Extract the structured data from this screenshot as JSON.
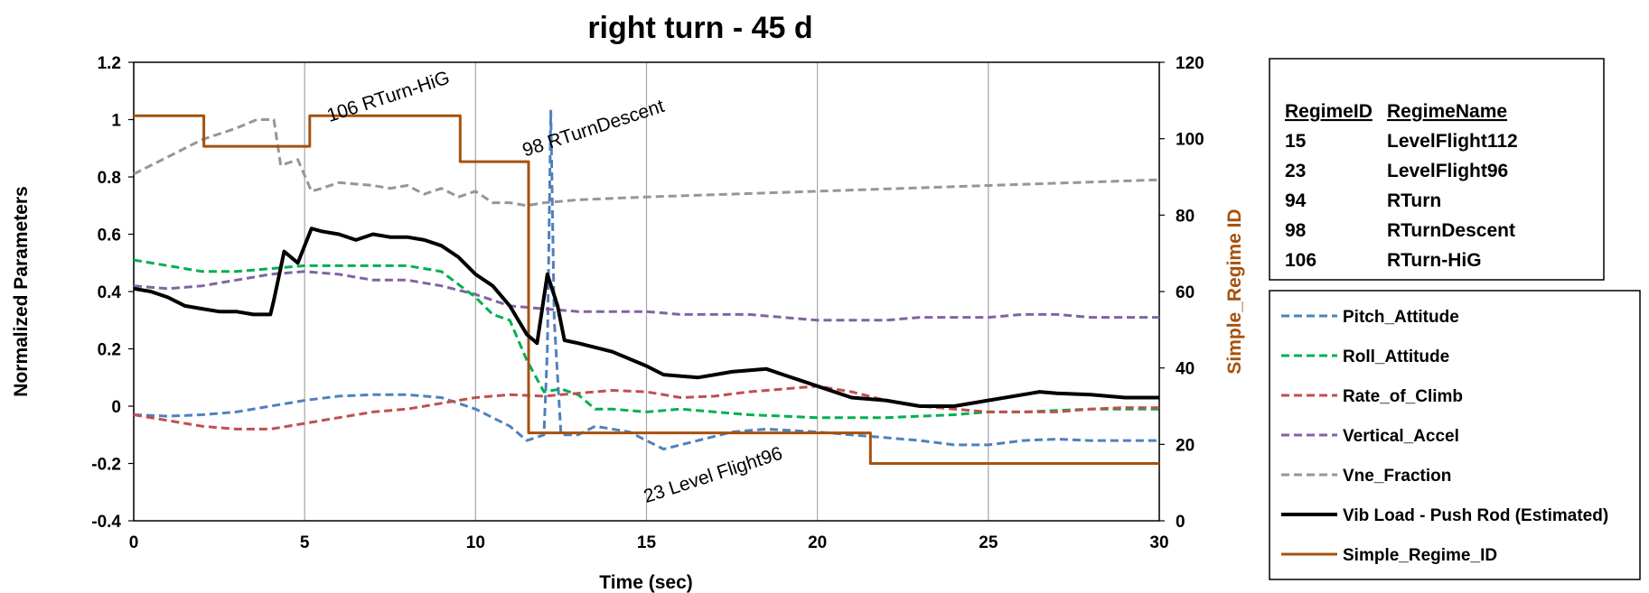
{
  "chart_data": {
    "type": "line",
    "title": "right turn - 45 d",
    "xlabel": "Time (sec)",
    "ylabel": "Normalized Parameters",
    "y2label": "Simple_Regime ID",
    "xlim": [
      0,
      30
    ],
    "ylim": [
      -0.4,
      1.2
    ],
    "y2lim": [
      0,
      120
    ],
    "x_ticks": [
      "0",
      "5",
      "10",
      "15",
      "20",
      "25",
      "30"
    ],
    "y_ticks": [
      "-0.4",
      "-0.2",
      "0",
      "0.2",
      "0.4",
      "0.6",
      "0.8",
      "1",
      "1.2"
    ],
    "y2_ticks": [
      "0",
      "20",
      "40",
      "60",
      "80",
      "100",
      "120"
    ],
    "grid": "vertical",
    "legend_position": "right",
    "series": [
      {
        "name": "Pitch_Attitude",
        "color": "#4f81bd",
        "dash": "dashed",
        "axis": "left",
        "points": [
          [
            0,
            -0.03
          ],
          [
            1,
            -0.035
          ],
          [
            2,
            -0.03
          ],
          [
            3,
            -0.02
          ],
          [
            4,
            0.0
          ],
          [
            5,
            0.02
          ],
          [
            6,
            0.035
          ],
          [
            7,
            0.04
          ],
          [
            8,
            0.04
          ],
          [
            9,
            0.03
          ],
          [
            10,
            -0.01
          ],
          [
            11,
            -0.07
          ],
          [
            11.5,
            -0.12
          ],
          [
            12,
            -0.1
          ],
          [
            12.1,
            0.2
          ],
          [
            12.2,
            1.03
          ],
          [
            12.3,
            0.3
          ],
          [
            12.5,
            -0.1
          ],
          [
            13,
            -0.1
          ],
          [
            13.5,
            -0.07
          ],
          [
            14.5,
            -0.09
          ],
          [
            15.5,
            -0.15
          ],
          [
            16.5,
            -0.12
          ],
          [
            17.5,
            -0.09
          ],
          [
            18.5,
            -0.08
          ],
          [
            20,
            -0.09
          ],
          [
            21,
            -0.1
          ],
          [
            22,
            -0.11
          ],
          [
            23,
            -0.12
          ],
          [
            24,
            -0.135
          ],
          [
            25,
            -0.135
          ],
          [
            26,
            -0.12
          ],
          [
            27,
            -0.115
          ],
          [
            28,
            -0.12
          ],
          [
            29,
            -0.12
          ],
          [
            30,
            -0.12
          ]
        ]
      },
      {
        "name": "Roll_Attitude",
        "color": "#00b050",
        "dash": "dashed",
        "axis": "left",
        "points": [
          [
            0,
            0.51
          ],
          [
            1,
            0.49
          ],
          [
            2,
            0.47
          ],
          [
            3,
            0.47
          ],
          [
            4,
            0.48
          ],
          [
            5,
            0.49
          ],
          [
            6,
            0.49
          ],
          [
            7,
            0.49
          ],
          [
            8,
            0.49
          ],
          [
            9,
            0.47
          ],
          [
            10,
            0.38
          ],
          [
            10.5,
            0.32
          ],
          [
            11,
            0.3
          ],
          [
            11.5,
            0.16
          ],
          [
            12,
            0.05
          ],
          [
            12.5,
            0.06
          ],
          [
            13,
            0.04
          ],
          [
            13.5,
            -0.01
          ],
          [
            14,
            -0.01
          ],
          [
            15,
            -0.02
          ],
          [
            16,
            -0.01
          ],
          [
            17,
            -0.02
          ],
          [
            18,
            -0.03
          ],
          [
            19,
            -0.035
          ],
          [
            20,
            -0.04
          ],
          [
            21,
            -0.04
          ],
          [
            22,
            -0.04
          ],
          [
            23,
            -0.035
          ],
          [
            24,
            -0.03
          ],
          [
            25,
            -0.02
          ],
          [
            26,
            -0.02
          ],
          [
            27,
            -0.015
          ],
          [
            28,
            -0.01
          ],
          [
            29,
            -0.01
          ],
          [
            30,
            -0.01
          ]
        ]
      },
      {
        "name": "Rate_of_Climb",
        "color": "#c0504d",
        "dash": "dashed",
        "axis": "left",
        "points": [
          [
            0,
            -0.03
          ],
          [
            1,
            -0.05
          ],
          [
            2,
            -0.07
          ],
          [
            3,
            -0.08
          ],
          [
            4,
            -0.08
          ],
          [
            5,
            -0.06
          ],
          [
            6,
            -0.04
          ],
          [
            7,
            -0.02
          ],
          [
            8,
            -0.01
          ],
          [
            9,
            0.01
          ],
          [
            10,
            0.03
          ],
          [
            11,
            0.04
          ],
          [
            12,
            0.035
          ],
          [
            13,
            0.045
          ],
          [
            14,
            0.055
          ],
          [
            15,
            0.05
          ],
          [
            16,
            0.03
          ],
          [
            17,
            0.035
          ],
          [
            18,
            0.05
          ],
          [
            19,
            0.06
          ],
          [
            20,
            0.07
          ],
          [
            21,
            0.05
          ],
          [
            22,
            0.02
          ],
          [
            23,
            0.0
          ],
          [
            24,
            -0.01
          ],
          [
            25,
            -0.02
          ],
          [
            26,
            -0.02
          ],
          [
            27,
            -0.02
          ],
          [
            28,
            -0.01
          ],
          [
            29,
            -0.005
          ],
          [
            30,
            -0.005
          ]
        ]
      },
      {
        "name": "Vertical_Accel",
        "color": "#8064a2",
        "dash": "dashed",
        "axis": "left",
        "points": [
          [
            0,
            0.42
          ],
          [
            1,
            0.41
          ],
          [
            2,
            0.42
          ],
          [
            3,
            0.44
          ],
          [
            4,
            0.46
          ],
          [
            5,
            0.47
          ],
          [
            6,
            0.46
          ],
          [
            7,
            0.44
          ],
          [
            8,
            0.44
          ],
          [
            9,
            0.42
          ],
          [
            10,
            0.39
          ],
          [
            11,
            0.35
          ],
          [
            12,
            0.34
          ],
          [
            13,
            0.33
          ],
          [
            14,
            0.33
          ],
          [
            15,
            0.33
          ],
          [
            16,
            0.32
          ],
          [
            17,
            0.32
          ],
          [
            18,
            0.32
          ],
          [
            19,
            0.31
          ],
          [
            20,
            0.3
          ],
          [
            21,
            0.3
          ],
          [
            22,
            0.3
          ],
          [
            23,
            0.31
          ],
          [
            24,
            0.31
          ],
          [
            25,
            0.31
          ],
          [
            26,
            0.32
          ],
          [
            27,
            0.32
          ],
          [
            28,
            0.31
          ],
          [
            29,
            0.31
          ],
          [
            30,
            0.31
          ]
        ]
      },
      {
        "name": "Vne_Fraction",
        "color": "#969696",
        "dash": "dashed",
        "axis": "left",
        "points": [
          [
            0,
            0.81
          ],
          [
            1,
            0.87
          ],
          [
            2,
            0.93
          ],
          [
            3,
            0.97
          ],
          [
            3.6,
            1.0
          ],
          [
            4.1,
            1.0
          ],
          [
            4.3,
            0.84
          ],
          [
            4.8,
            0.86
          ],
          [
            5.2,
            0.75
          ],
          [
            5.5,
            0.76
          ],
          [
            6,
            0.78
          ],
          [
            7,
            0.77
          ],
          [
            7.5,
            0.76
          ],
          [
            8,
            0.77
          ],
          [
            8.5,
            0.74
          ],
          [
            9,
            0.76
          ],
          [
            9.5,
            0.73
          ],
          [
            10,
            0.75
          ],
          [
            10.5,
            0.71
          ],
          [
            11,
            0.71
          ],
          [
            11.5,
            0.7
          ],
          [
            12,
            0.71
          ],
          [
            13,
            0.72
          ],
          [
            15,
            0.73
          ],
          [
            20,
            0.75
          ],
          [
            25,
            0.77
          ],
          [
            30,
            0.79
          ]
        ]
      },
      {
        "name": "Vib Load - Push Rod (Estimated)",
        "color": "#000000",
        "dash": "solid",
        "axis": "left",
        "points": [
          [
            0,
            0.41
          ],
          [
            0.5,
            0.4
          ],
          [
            1,
            0.38
          ],
          [
            1.5,
            0.35
          ],
          [
            2,
            0.34
          ],
          [
            2.5,
            0.33
          ],
          [
            3,
            0.33
          ],
          [
            3.5,
            0.32
          ],
          [
            4,
            0.32
          ],
          [
            4.1,
            0.37
          ],
          [
            4.4,
            0.54
          ],
          [
            4.8,
            0.5
          ],
          [
            5.2,
            0.62
          ],
          [
            5.5,
            0.61
          ],
          [
            6,
            0.6
          ],
          [
            6.5,
            0.58
          ],
          [
            7,
            0.6
          ],
          [
            7.5,
            0.59
          ],
          [
            8,
            0.59
          ],
          [
            8.5,
            0.58
          ],
          [
            9,
            0.56
          ],
          [
            9.5,
            0.52
          ],
          [
            10,
            0.46
          ],
          [
            10.5,
            0.42
          ],
          [
            11,
            0.35
          ],
          [
            11.5,
            0.25
          ],
          [
            11.8,
            0.22
          ],
          [
            12.1,
            0.46
          ],
          [
            12.4,
            0.35
          ],
          [
            12.6,
            0.23
          ],
          [
            13,
            0.22
          ],
          [
            14,
            0.19
          ],
          [
            15,
            0.14
          ],
          [
            15.5,
            0.11
          ],
          [
            16.5,
            0.1
          ],
          [
            17,
            0.11
          ],
          [
            17.5,
            0.12
          ],
          [
            18.5,
            0.13
          ],
          [
            19,
            0.11
          ],
          [
            20,
            0.07
          ],
          [
            21,
            0.03
          ],
          [
            22,
            0.02
          ],
          [
            23,
            0.0
          ],
          [
            24,
            0.0
          ],
          [
            25,
            0.02
          ],
          [
            26,
            0.04
          ],
          [
            26.5,
            0.05
          ],
          [
            27,
            0.045
          ],
          [
            28,
            0.04
          ],
          [
            29,
            0.03
          ],
          [
            30,
            0.03
          ]
        ]
      },
      {
        "name": "Simple_Regime_ID",
        "color": "#a5520e",
        "dash": "solid",
        "axis": "right",
        "step": true,
        "points": [
          [
            0,
            106
          ],
          [
            2.05,
            106
          ],
          [
            2.05,
            98
          ],
          [
            5.15,
            98
          ],
          [
            5.15,
            106
          ],
          [
            9.55,
            106
          ],
          [
            9.55,
            94
          ],
          [
            11.55,
            94
          ],
          [
            11.55,
            23
          ],
          [
            21.55,
            23
          ],
          [
            21.55,
            15
          ],
          [
            30,
            15
          ]
        ]
      }
    ],
    "annotations": [
      {
        "text": "106 RTurn-HiG",
        "x": 7.5,
        "y": 1.06,
        "rotate": -18
      },
      {
        "text": "98 RTurnDescent",
        "x": 13.5,
        "y": 0.95,
        "rotate": -18
      },
      {
        "text": "23 Level Flight96",
        "x": 17.0,
        "y": -0.26,
        "rotate": -18
      }
    ],
    "regime_table": {
      "headers": [
        "RegimeID",
        "RegimeName"
      ],
      "rows": [
        [
          "15",
          "LevelFlight112"
        ],
        [
          "23",
          "LevelFlight96"
        ],
        [
          "94",
          "RTurn"
        ],
        [
          "98",
          "RTurnDescent"
        ],
        [
          "106",
          "RTurn-HiG"
        ]
      ]
    }
  }
}
